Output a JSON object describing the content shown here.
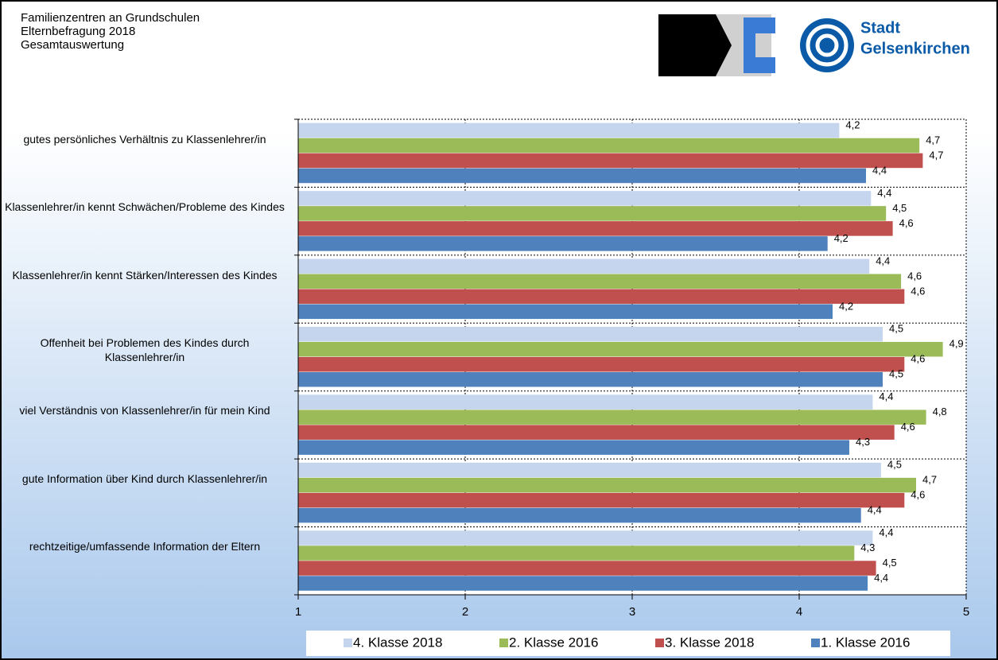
{
  "header": {
    "lines": [
      "Familienzentren an Grundschulen",
      "Elternbefragung 2018",
      "Gesamtauswertung"
    ],
    "logo": [
      "Stadt",
      "Gelsenkirchen"
    ]
  },
  "chart_data": {
    "type": "hbar",
    "categories": [
      "gutes persönliches Verhältnis zu Klassenlehrer/in",
      "Klassenlehrer/in kennt Schwächen/Probleme des Kindes",
      "Klassenlehrer/in kennt Stärken/Interessen des Kindes",
      "Offenheit bei Problemen des Kindes durch Klassenlehrer/in",
      "viel Verständnis von Klassenlehrer/in  für mein Kind",
      "gute Information über Kind durch Klassenlehrer/in",
      "rechtzeitige/umfassende Information der Eltern"
    ],
    "series": [
      {
        "name": "4. Klasse 2018",
        "color": "#c6d5ee",
        "values": [
          4.24,
          4.43,
          4.42,
          4.5,
          4.44,
          4.49,
          4.44
        ],
        "value_labels": [
          "4,2",
          "4,4",
          "4,4",
          "4,5",
          "4,4",
          "4,5",
          "4,4"
        ]
      },
      {
        "name": "2. Klasse 2016",
        "color": "#9bbb59",
        "values": [
          4.72,
          4.52,
          4.61,
          4.86,
          4.76,
          4.7,
          4.33
        ],
        "value_labels": [
          "4,7",
          "4,5",
          "4,6",
          "4,9",
          "4,8",
          "4,7",
          "4,3"
        ]
      },
      {
        "name": "3. Klasse 2018",
        "color": "#c0504d",
        "values": [
          4.74,
          4.56,
          4.63,
          4.63,
          4.57,
          4.63,
          4.46
        ],
        "value_labels": [
          "4,7",
          "4,6",
          "4,6",
          "4,6",
          "4,6",
          "4,6",
          "4,5"
        ]
      },
      {
        "name": "1. Klasse 2016",
        "color": "#4f81bd",
        "values": [
          4.4,
          4.17,
          4.2,
          4.5,
          4.3,
          4.37,
          4.41
        ],
        "value_labels": [
          "4,4",
          "4,2",
          "4,2",
          "4,5",
          "4,3",
          "4,4",
          "4,4"
        ]
      }
    ],
    "xlim": [
      1,
      5
    ],
    "xticks": [
      1,
      2,
      3,
      4,
      5
    ],
    "grid": true,
    "legend": "bottom"
  }
}
